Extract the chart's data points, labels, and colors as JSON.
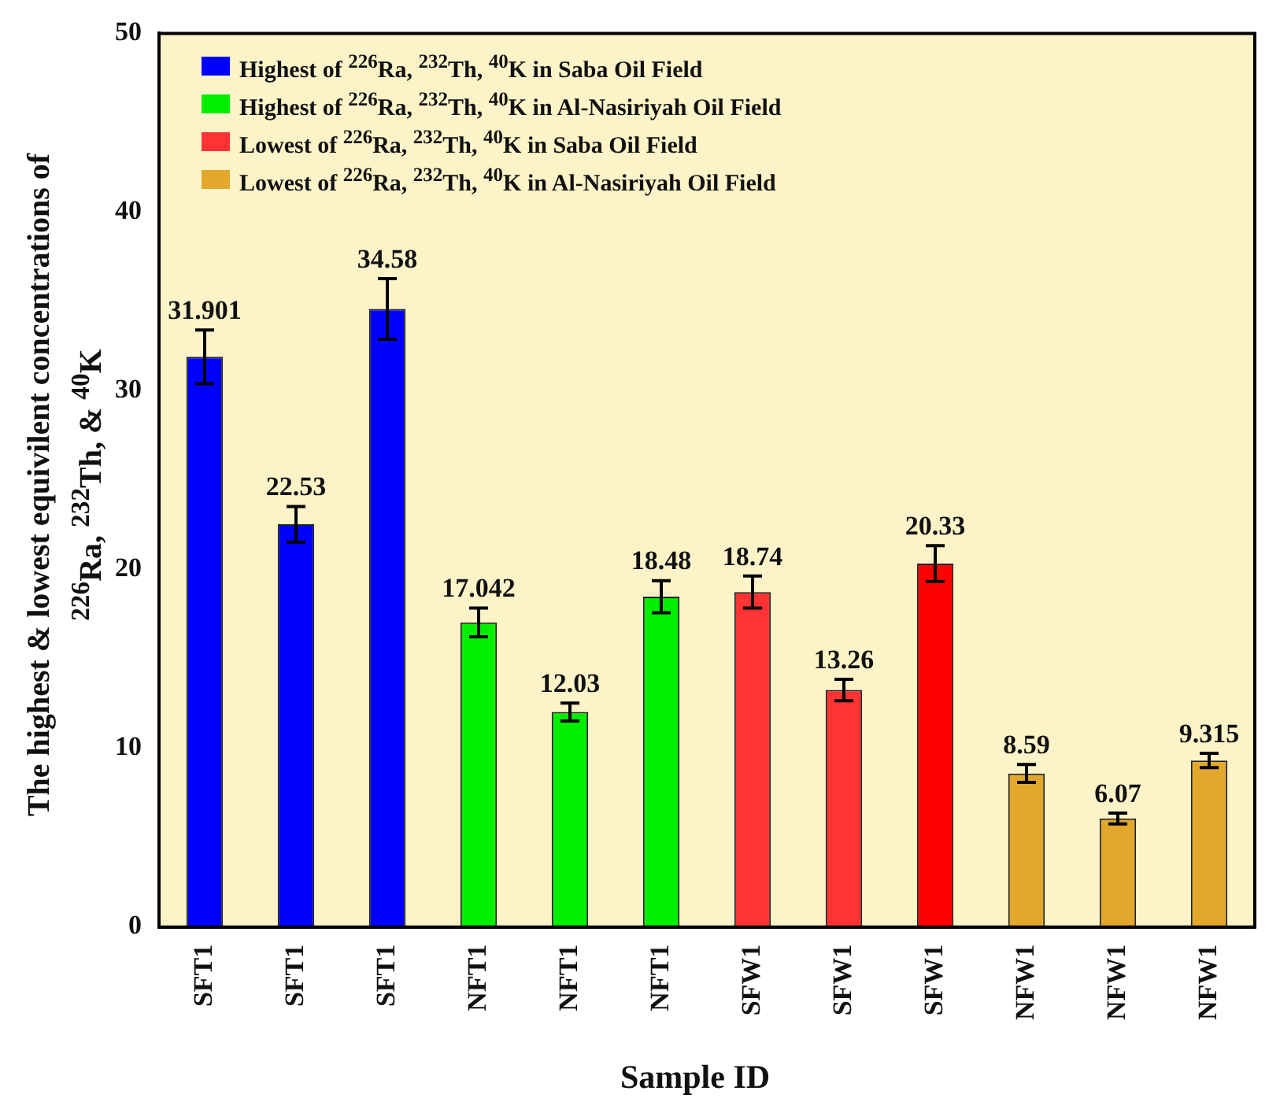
{
  "chart_data": {
    "type": "bar",
    "xlabel": "Sample ID",
    "ylabel": "The highest & lowest equivilent concentrations of $^{226}$Ra, $^{232}$Th, & $^{40}$K",
    "categories": [
      "SFT1",
      "SFT1",
      "SFT1",
      "NFT1",
      "NFT1",
      "NFT1",
      "SFW1",
      "SFW1",
      "SFW1",
      "NFW1",
      "NFW1",
      "NFW1"
    ],
    "series": [
      {
        "name": "Highest of $^{226}$Ra, $^{232}$Th, $^{40}$K in Saba Oil Field",
        "color": "#0000ff",
        "values": [
          31.901,
          22.53,
          34.58,
          null,
          null,
          null,
          null,
          null,
          null,
          null,
          null,
          null
        ],
        "errors": [
          1.5,
          1.0,
          1.7,
          null,
          null,
          null,
          null,
          null,
          null,
          null,
          null,
          null
        ]
      },
      {
        "name": "Highest of $^{226}$Ra, $^{232}$Th, $^{40}$K in Al-Nasiriyah Oil Field",
        "color": "#00ee00",
        "values": [
          null,
          null,
          null,
          17.042,
          12.03,
          18.48,
          null,
          null,
          null,
          null,
          null,
          null
        ],
        "errors": [
          null,
          null,
          null,
          0.8,
          0.5,
          0.9,
          null,
          null,
          null,
          null,
          null,
          null
        ]
      },
      {
        "name": "Lowest of $^{226}$Ra, $^{232}$Th, $^{40}$K in Saba Oil Field",
        "color": "#ff3333",
        "colors": [
          null,
          null,
          null,
          null,
          null,
          null,
          "#ff3333",
          "#ff3333",
          "#ff0000",
          null,
          null,
          null
        ],
        "values": [
          null,
          null,
          null,
          null,
          null,
          null,
          18.74,
          13.26,
          20.33,
          null,
          null,
          null
        ],
        "errors": [
          null,
          null,
          null,
          null,
          null,
          null,
          0.9,
          0.6,
          1.0,
          null,
          null,
          null
        ]
      },
      {
        "name": "Lowest of $^{226}$Ra, $^{232}$Th, $^{40}$K in Al-Nasiriyah Oil Field",
        "color": "#e3a82b",
        "values": [
          null,
          null,
          null,
          null,
          null,
          null,
          null,
          null,
          null,
          8.59,
          6.07,
          9.315
        ],
        "errors": [
          null,
          null,
          null,
          null,
          null,
          null,
          null,
          null,
          null,
          0.5,
          0.3,
          0.4
        ]
      }
    ],
    "ylim": [
      0,
      50
    ],
    "yticks": [
      0,
      10,
      20,
      30,
      40,
      50
    ],
    "grid": false,
    "legend": "top left",
    "data_labels": true
  }
}
